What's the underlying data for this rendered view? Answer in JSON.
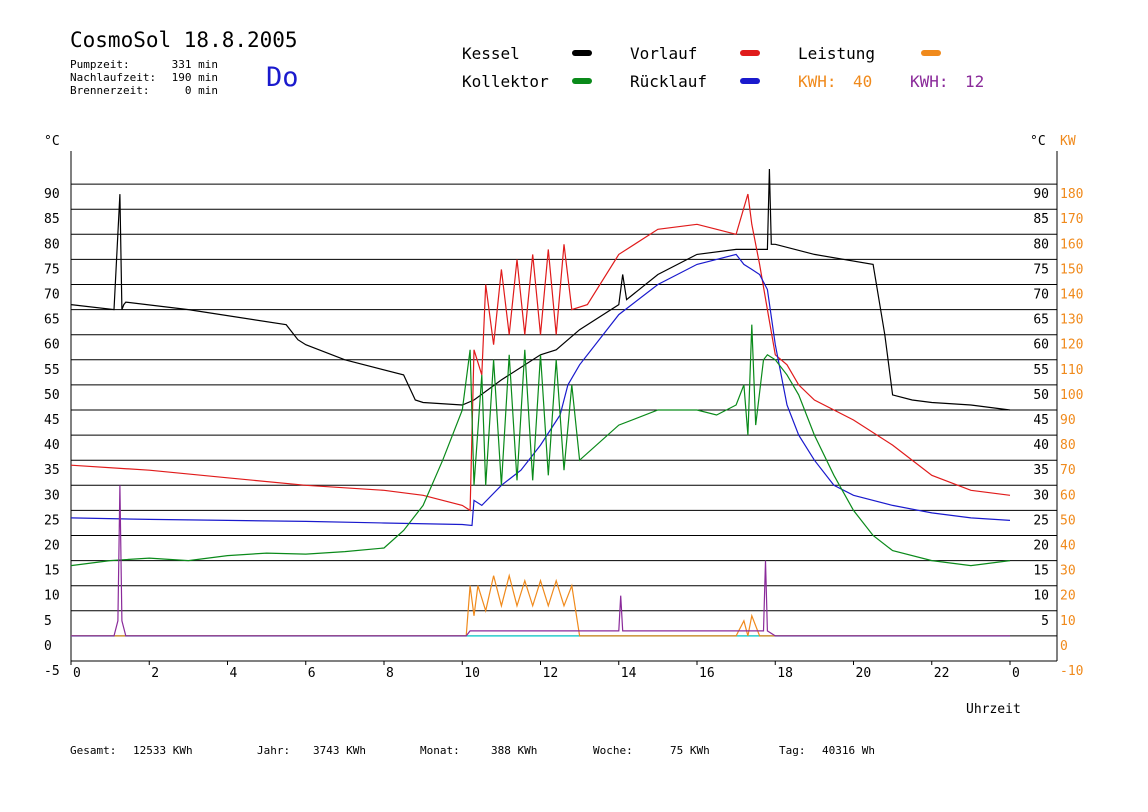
{
  "header": {
    "title": "CosmoSol 18.8.2005",
    "day": "Do",
    "run_times": [
      {
        "label": "Pumpzeit:",
        "value": "331 min"
      },
      {
        "label": "Nachlaufzeit:",
        "value": "190 min"
      },
      {
        "label": "Brennerzeit:",
        "value": "0 min"
      }
    ]
  },
  "legend": {
    "kessel": {
      "label": "Kessel",
      "color": "#000000"
    },
    "vorlauf": {
      "label": "Vorlauf",
      "color": "#e01b1b"
    },
    "leistung": {
      "label": "Leistung",
      "color": "#f08a1c"
    },
    "kollektor": {
      "label": "Kollektor",
      "color": "#0a8a1a"
    },
    "ruecklauf": {
      "label": "Rücklauf",
      "color": "#1a1acd"
    },
    "kwh1_label": "KWH:",
    "kwh1_value": "40",
    "kwh2_label": "KWH:",
    "kwh2_value": "12",
    "kwh1_color": "#f08a1c",
    "kwh2_color": "#8a2a9a"
  },
  "axes": {
    "left_unit": "°C",
    "right_unit_c": "°C",
    "right_unit_kw": "KW",
    "x_label": "Uhrzeit"
  },
  "footer": [
    {
      "label": "Gesamt:",
      "value": "12533 KWh"
    },
    {
      "label": "Jahr:",
      "value": "3743 KWh"
    },
    {
      "label": "Monat:",
      "value": "388 KWh"
    },
    {
      "label": "Woche:",
      "value": "75 KWh"
    },
    {
      "label": "Tag:",
      "value": "40316 Wh"
    }
  ],
  "chart_data": {
    "type": "line",
    "title": "CosmoSol 18.8.2005",
    "xlabel": "Uhrzeit",
    "ylabel": "°C",
    "y2label": "KW",
    "xlim": [
      0,
      24
    ],
    "ylim": [
      -5,
      95
    ],
    "y2lim": [
      -10,
      190
    ],
    "x_ticks": [
      "0",
      "2",
      "4",
      "6",
      "8",
      "10",
      "12",
      "14",
      "16",
      "18",
      "20",
      "22",
      "0"
    ],
    "y_ticks": [
      -5,
      0,
      5,
      10,
      15,
      20,
      25,
      30,
      35,
      40,
      45,
      50,
      55,
      60,
      65,
      70,
      75,
      80,
      85,
      90
    ],
    "y2_ticks": [
      "-10",
      "0",
      "10",
      "20",
      "30",
      "40",
      "50",
      "60",
      "70",
      "80",
      "90",
      "100",
      "110",
      "120",
      "130",
      "140",
      "150",
      "160",
      "170",
      "180"
    ],
    "y2_tick_extra": [
      "5",
      "10",
      "15",
      "20",
      "25",
      "30",
      "35",
      "40",
      "45",
      "50",
      "55",
      "60",
      "65",
      "70",
      "75",
      "80",
      "85",
      "90"
    ],
    "grid": "horizontal",
    "series": [
      {
        "name": "Kessel",
        "color": "#000000",
        "x": [
          0,
          1.1,
          1.25,
          1.3,
          1.35,
          1.4,
          3,
          5.5,
          5.8,
          6,
          7,
          8.5,
          8.8,
          9,
          10,
          10.3,
          11,
          12,
          12.4,
          13,
          14,
          14.1,
          14.2,
          15,
          16,
          17,
          17.8,
          17.85,
          17.9,
          18,
          19,
          20.5,
          20.8,
          21,
          21.5,
          22,
          23,
          24
        ],
        "y": [
          66,
          65,
          88,
          65,
          66,
          66.5,
          65,
          62,
          59,
          58,
          55,
          52,
          47,
          46.5,
          46,
          47,
          51,
          56,
          57,
          61,
          66,
          72,
          67,
          72,
          76,
          77,
          77,
          93,
          78,
          78,
          76,
          74,
          60,
          48,
          47,
          46.5,
          46,
          45
        ]
      },
      {
        "name": "Vorlauf",
        "color": "#e01b1b",
        "x": [
          0,
          2,
          4,
          6,
          8,
          9,
          10,
          10.2,
          10.3,
          10.5,
          10.6,
          10.8,
          11,
          11.2,
          11.4,
          11.6,
          11.8,
          12,
          12.2,
          12.4,
          12.6,
          12.8,
          13.2,
          14,
          15,
          16,
          16.5,
          17,
          17.3,
          17.4,
          17.6,
          17.8,
          18,
          18.3,
          18.6,
          19,
          20,
          21,
          22,
          23,
          24
        ],
        "y": [
          34,
          33,
          31.5,
          30,
          29,
          28,
          26,
          25,
          57,
          52,
          70,
          58,
          73,
          60,
          75,
          60,
          76,
          60,
          77,
          60,
          78,
          65,
          66,
          76,
          81,
          82,
          81,
          80,
          88,
          82,
          74,
          65,
          56,
          54,
          50,
          47,
          43,
          38,
          32,
          29,
          28
        ]
      },
      {
        "name": "Rücklauf",
        "color": "#1a1acd",
        "x": [
          0,
          2,
          4,
          6,
          8,
          10,
          10.25,
          10.3,
          10.5,
          11,
          11.5,
          12,
          12.5,
          12.7,
          13,
          14,
          15,
          16,
          16.5,
          17,
          17.2,
          17.4,
          17.6,
          17.8,
          18,
          18.3,
          18.6,
          19,
          19.5,
          20,
          21,
          22,
          23,
          24
        ],
        "y": [
          23.5,
          23.2,
          23,
          22.8,
          22.5,
          22.2,
          22,
          27,
          26,
          30,
          33,
          38,
          44,
          50,
          54,
          64,
          70,
          74,
          75,
          76,
          74,
          73,
          72,
          69,
          58,
          46,
          40,
          35,
          30,
          28,
          26,
          24.5,
          23.5,
          23
        ]
      },
      {
        "name": "Kollektor",
        "color": "#0a8a1a",
        "x": [
          0,
          1,
          2,
          3,
          4,
          5,
          6,
          7,
          8,
          8.5,
          9,
          9.5,
          10,
          10.2,
          10.3,
          10.5,
          10.6,
          10.8,
          11,
          11.2,
          11.4,
          11.6,
          11.8,
          12,
          12.2,
          12.4,
          12.6,
          12.8,
          13,
          14,
          15,
          16,
          16.5,
          17,
          17.2,
          17.3,
          17.4,
          17.5,
          17.7,
          17.8,
          18,
          18.3,
          18.6,
          19,
          19.5,
          20,
          20.5,
          21,
          22,
          23,
          24
        ],
        "y": [
          14,
          15,
          15.5,
          15,
          16,
          16.5,
          16.3,
          16.8,
          17.5,
          21,
          26,
          35,
          45,
          57,
          30,
          52,
          30,
          55,
          30,
          56,
          31,
          57,
          31,
          56,
          32,
          55,
          33,
          50,
          35,
          42,
          45,
          45,
          44,
          46,
          50,
          40,
          62,
          42,
          55,
          56,
          55,
          52,
          48,
          40,
          32,
          25,
          20,
          17,
          15,
          14,
          15
        ]
      },
      {
        "name": "Leistung",
        "color": "#f08a1c",
        "x": [
          0,
          10.1,
          10.2,
          10.3,
          10.4,
          10.6,
          10.8,
          11,
          11.2,
          11.4,
          11.6,
          11.8,
          12,
          12.2,
          12.4,
          12.6,
          12.8,
          13,
          14,
          15,
          16,
          17,
          17.2,
          17.3,
          17.4,
          17.6,
          24
        ],
        "y": [
          0,
          0,
          10,
          4,
          10,
          5,
          12,
          6,
          12,
          6,
          11,
          6,
          11,
          6,
          11,
          6,
          10,
          0,
          0,
          0,
          0,
          0,
          3,
          0,
          4,
          0,
          0
        ]
      },
      {
        "name": "",
        "color": "#8a2a9a",
        "x": [
          0,
          1.1,
          1.2,
          1.25,
          1.3,
          1.4,
          10.1,
          10.2,
          10.4,
          11,
          12,
          12.6,
          13,
          14,
          14.05,
          14.1,
          15,
          16,
          17,
          17.7,
          17.75,
          17.8,
          18,
          24
        ],
        "y": [
          0,
          0,
          3,
          30,
          3,
          0,
          0,
          1,
          1,
          1,
          1,
          1,
          1,
          1,
          8,
          1,
          1,
          1,
          1,
          1,
          15,
          1,
          0,
          0
        ]
      }
    ]
  }
}
